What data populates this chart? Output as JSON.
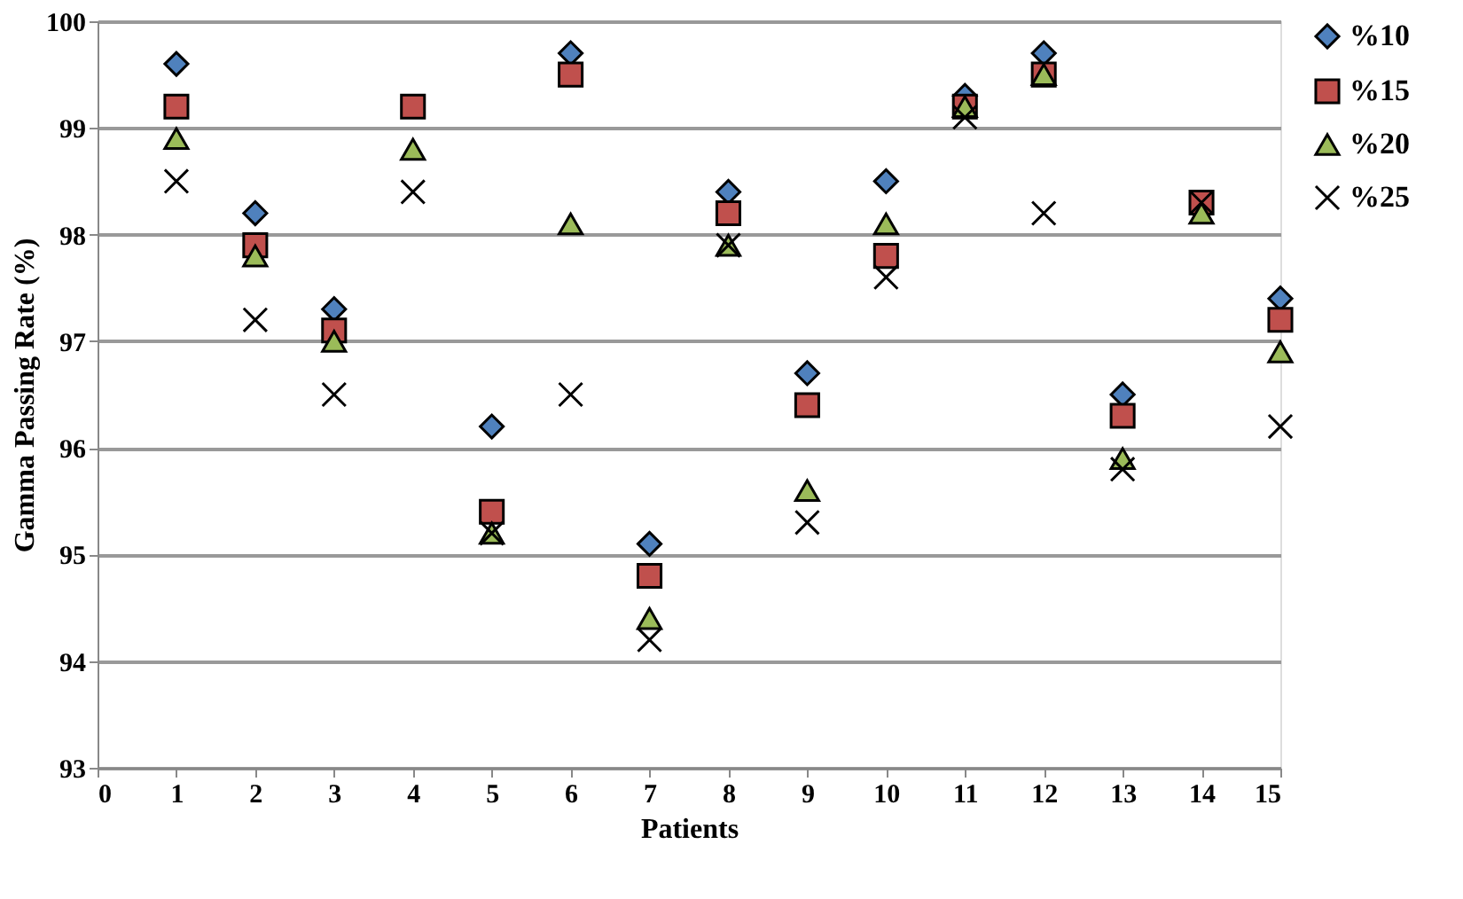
{
  "chart_data": {
    "type": "scatter",
    "xlabel": "Patients",
    "ylabel": "Gamma  Passing Rate (%)",
    "x": [
      1,
      2,
      3,
      4,
      5,
      6,
      7,
      8,
      9,
      10,
      11,
      12,
      13,
      14,
      15
    ],
    "xlim": [
      0,
      15
    ],
    "xticks": [
      0,
      1,
      2,
      3,
      4,
      5,
      6,
      7,
      8,
      9,
      10,
      11,
      12,
      13,
      14,
      15
    ],
    "ylim": [
      93,
      100
    ],
    "yticks": [
      93,
      94,
      95,
      96,
      97,
      98,
      99,
      100
    ],
    "grid": "y",
    "legend": "right",
    "series": [
      {
        "name": "%10",
        "color": "#4f81bd",
        "marker": "diamond",
        "values": [
          99.6,
          98.2,
          97.3,
          null,
          96.2,
          99.7,
          95.1,
          98.4,
          96.7,
          98.5,
          99.3,
          99.7,
          96.5,
          null,
          97.4
        ]
      },
      {
        "name": "%15",
        "color": "#c0504d",
        "marker": "square",
        "values": [
          99.2,
          97.9,
          97.1,
          99.2,
          95.4,
          99.5,
          94.8,
          98.2,
          96.4,
          97.8,
          99.2,
          99.5,
          96.3,
          98.3,
          97.2
        ]
      },
      {
        "name": "%20",
        "color": "#9bbb59",
        "marker": "triangle",
        "values": [
          98.9,
          97.8,
          97.0,
          98.8,
          95.2,
          98.1,
          94.4,
          97.9,
          95.6,
          98.1,
          99.2,
          99.5,
          95.9,
          98.2,
          96.9
        ]
      },
      {
        "name": "%25",
        "color": "#000000",
        "marker": "cross",
        "values": [
          98.5,
          97.2,
          96.5,
          98.4,
          95.2,
          96.5,
          94.2,
          97.9,
          95.3,
          97.6,
          99.1,
          98.2,
          95.8,
          98.3,
          96.2
        ]
      }
    ]
  }
}
